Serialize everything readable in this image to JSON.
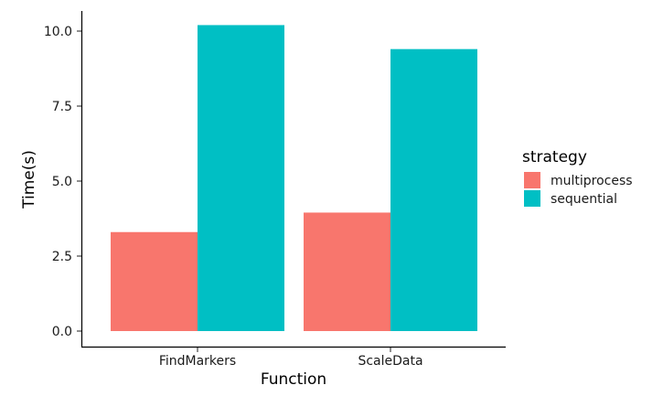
{
  "chart_data": {
    "type": "bar",
    "title": "",
    "xlabel": "Function",
    "ylabel": "Time(s)",
    "categories": [
      "FindMarkers",
      "ScaleData"
    ],
    "series": [
      {
        "name": "multiprocess",
        "values": [
          3.3,
          3.95
        ],
        "color": "#F8766D"
      },
      {
        "name": "sequential",
        "values": [
          10.2,
          9.4
        ],
        "color": "#00BFC4"
      }
    ],
    "ylim": [
      0,
      10.7
    ],
    "yticks": [
      0,
      2.5,
      5,
      7.5,
      10
    ],
    "ytick_labels": [
      "0.0",
      "2.5",
      "5.0",
      "7.5",
      "10.0"
    ],
    "grid": false,
    "legend": {
      "title": "strategy",
      "placement": "right"
    }
  }
}
